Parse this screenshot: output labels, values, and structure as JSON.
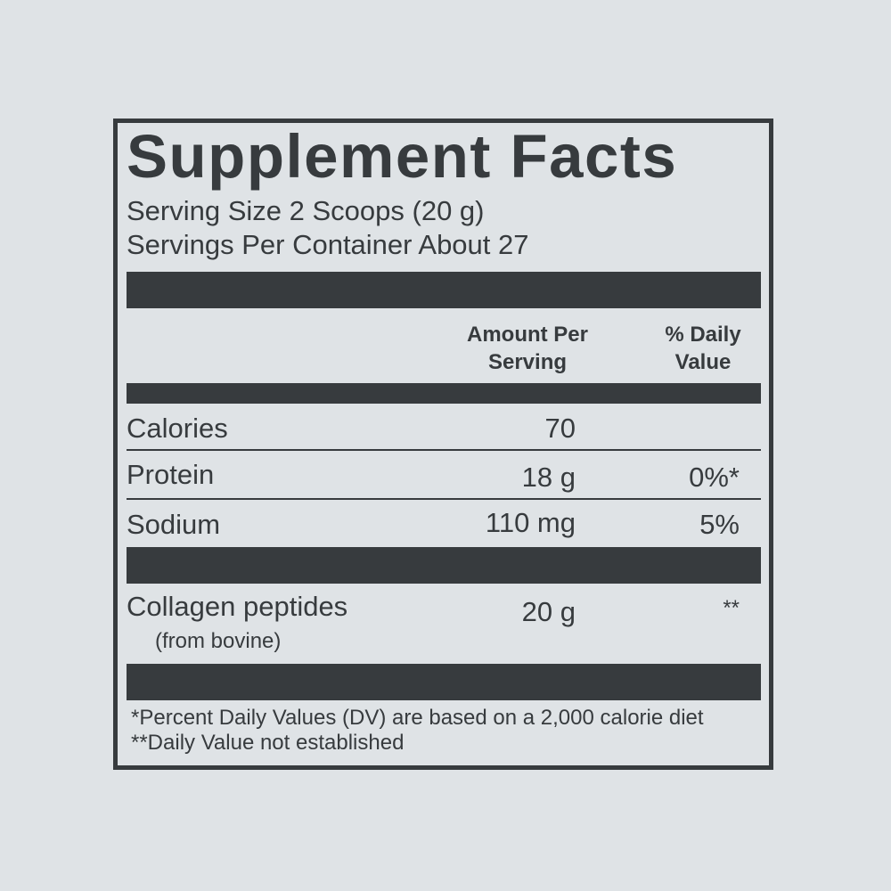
{
  "title": "Supplement Facts",
  "serving_size": "Serving Size 2 Scoops (20 g)",
  "servings_per_container": "Servings Per Container About 27",
  "headers": {
    "amount_line1": "Amount Per",
    "amount_line2": "Serving",
    "dv_line1": "% Daily",
    "dv_line2": "Value"
  },
  "rows": [
    {
      "name": "Calories",
      "amount": "70",
      "dv": ""
    },
    {
      "name": "Protein",
      "amount": "18 g",
      "dv": "0%*"
    },
    {
      "name": "Sodium",
      "amount": "110 mg",
      "dv": "5%"
    },
    {
      "name": "Collagen peptides",
      "sub": "(from bovine)",
      "amount": "20 g",
      "dv": "**"
    }
  ],
  "footnotes": [
    "*Percent Daily Values (DV) are based on a 2,000 calorie diet",
    "**Daily Value not established"
  ],
  "colors": {
    "background": "#dfe3e6",
    "ink": "#373b3e"
  }
}
